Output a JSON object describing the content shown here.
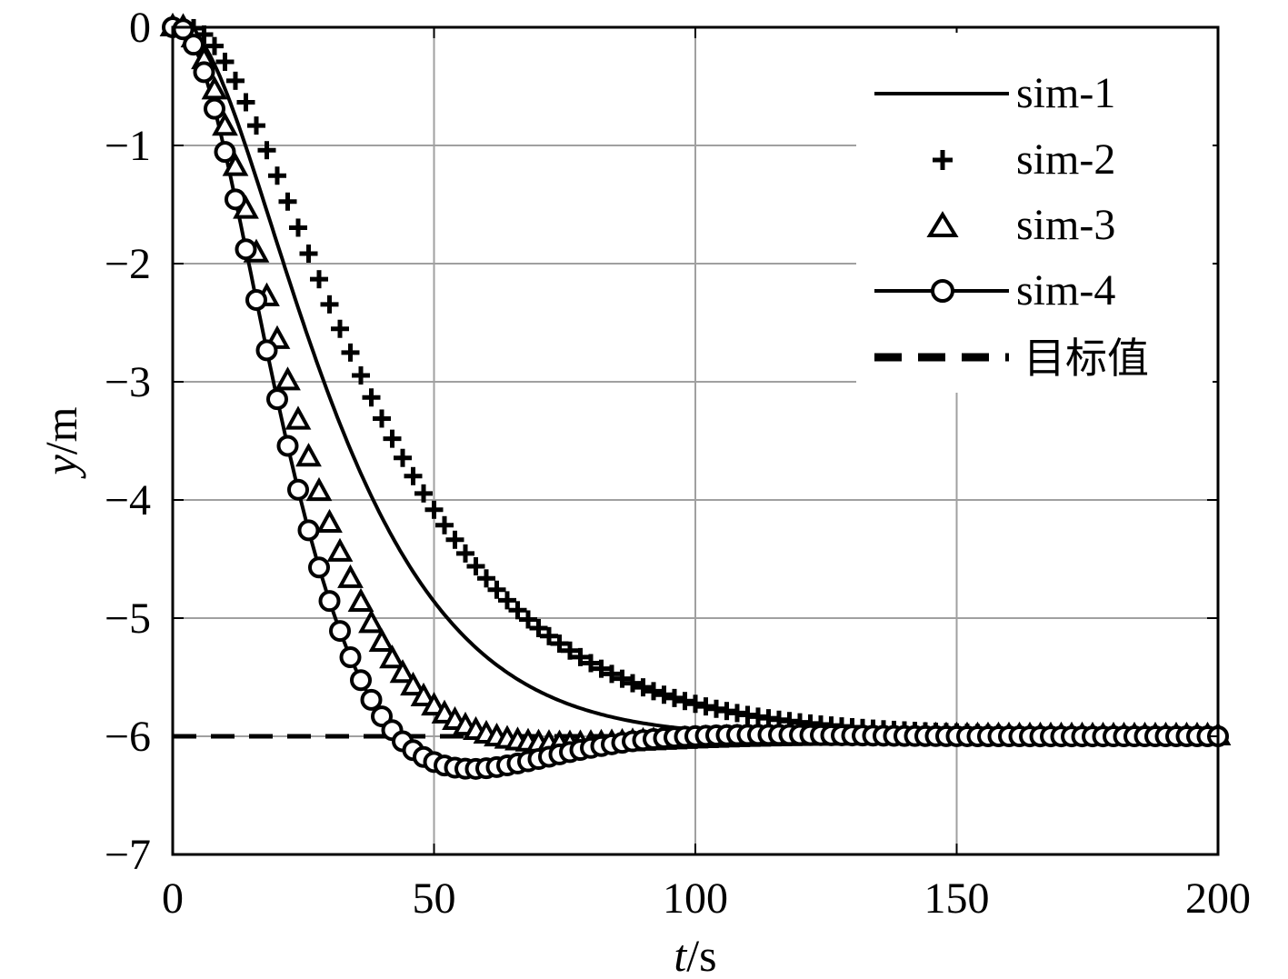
{
  "chart_data": {
    "type": "line",
    "xlabel_italic": "t",
    "xlabel_unit": "/s",
    "ylabel_italic": "y",
    "ylabel_unit": "/m",
    "xlim": [
      0,
      200
    ],
    "ylim": [
      -7,
      0
    ],
    "x_ticks": [
      "0",
      "50",
      "100",
      "150",
      "200"
    ],
    "y_ticks": [
      "0",
      "−1",
      "−2",
      "−3",
      "−4",
      "−5",
      "−6",
      "−7"
    ],
    "grid": true,
    "legend_position": "top-right",
    "series": [
      {
        "name": "sim-1",
        "style": "solid",
        "t0": 2,
        "tau": 16.5,
        "zeta": 0.95,
        "final": -6
      },
      {
        "name": "sim-2",
        "style": "plus",
        "t0": 3,
        "tau": 20,
        "zeta": 1.0,
        "final": -6
      },
      {
        "name": "sim-3",
        "style": "triangle",
        "t0": 1.5,
        "tau": 13.5,
        "zeta": 0.82,
        "final": -6
      },
      {
        "name": "sim-4",
        "style": "circle-line",
        "t0": 1,
        "tau": 12.8,
        "zeta": 0.7,
        "final": -6
      },
      {
        "name": "目标值",
        "style": "dashed",
        "value": -6
      }
    ]
  }
}
